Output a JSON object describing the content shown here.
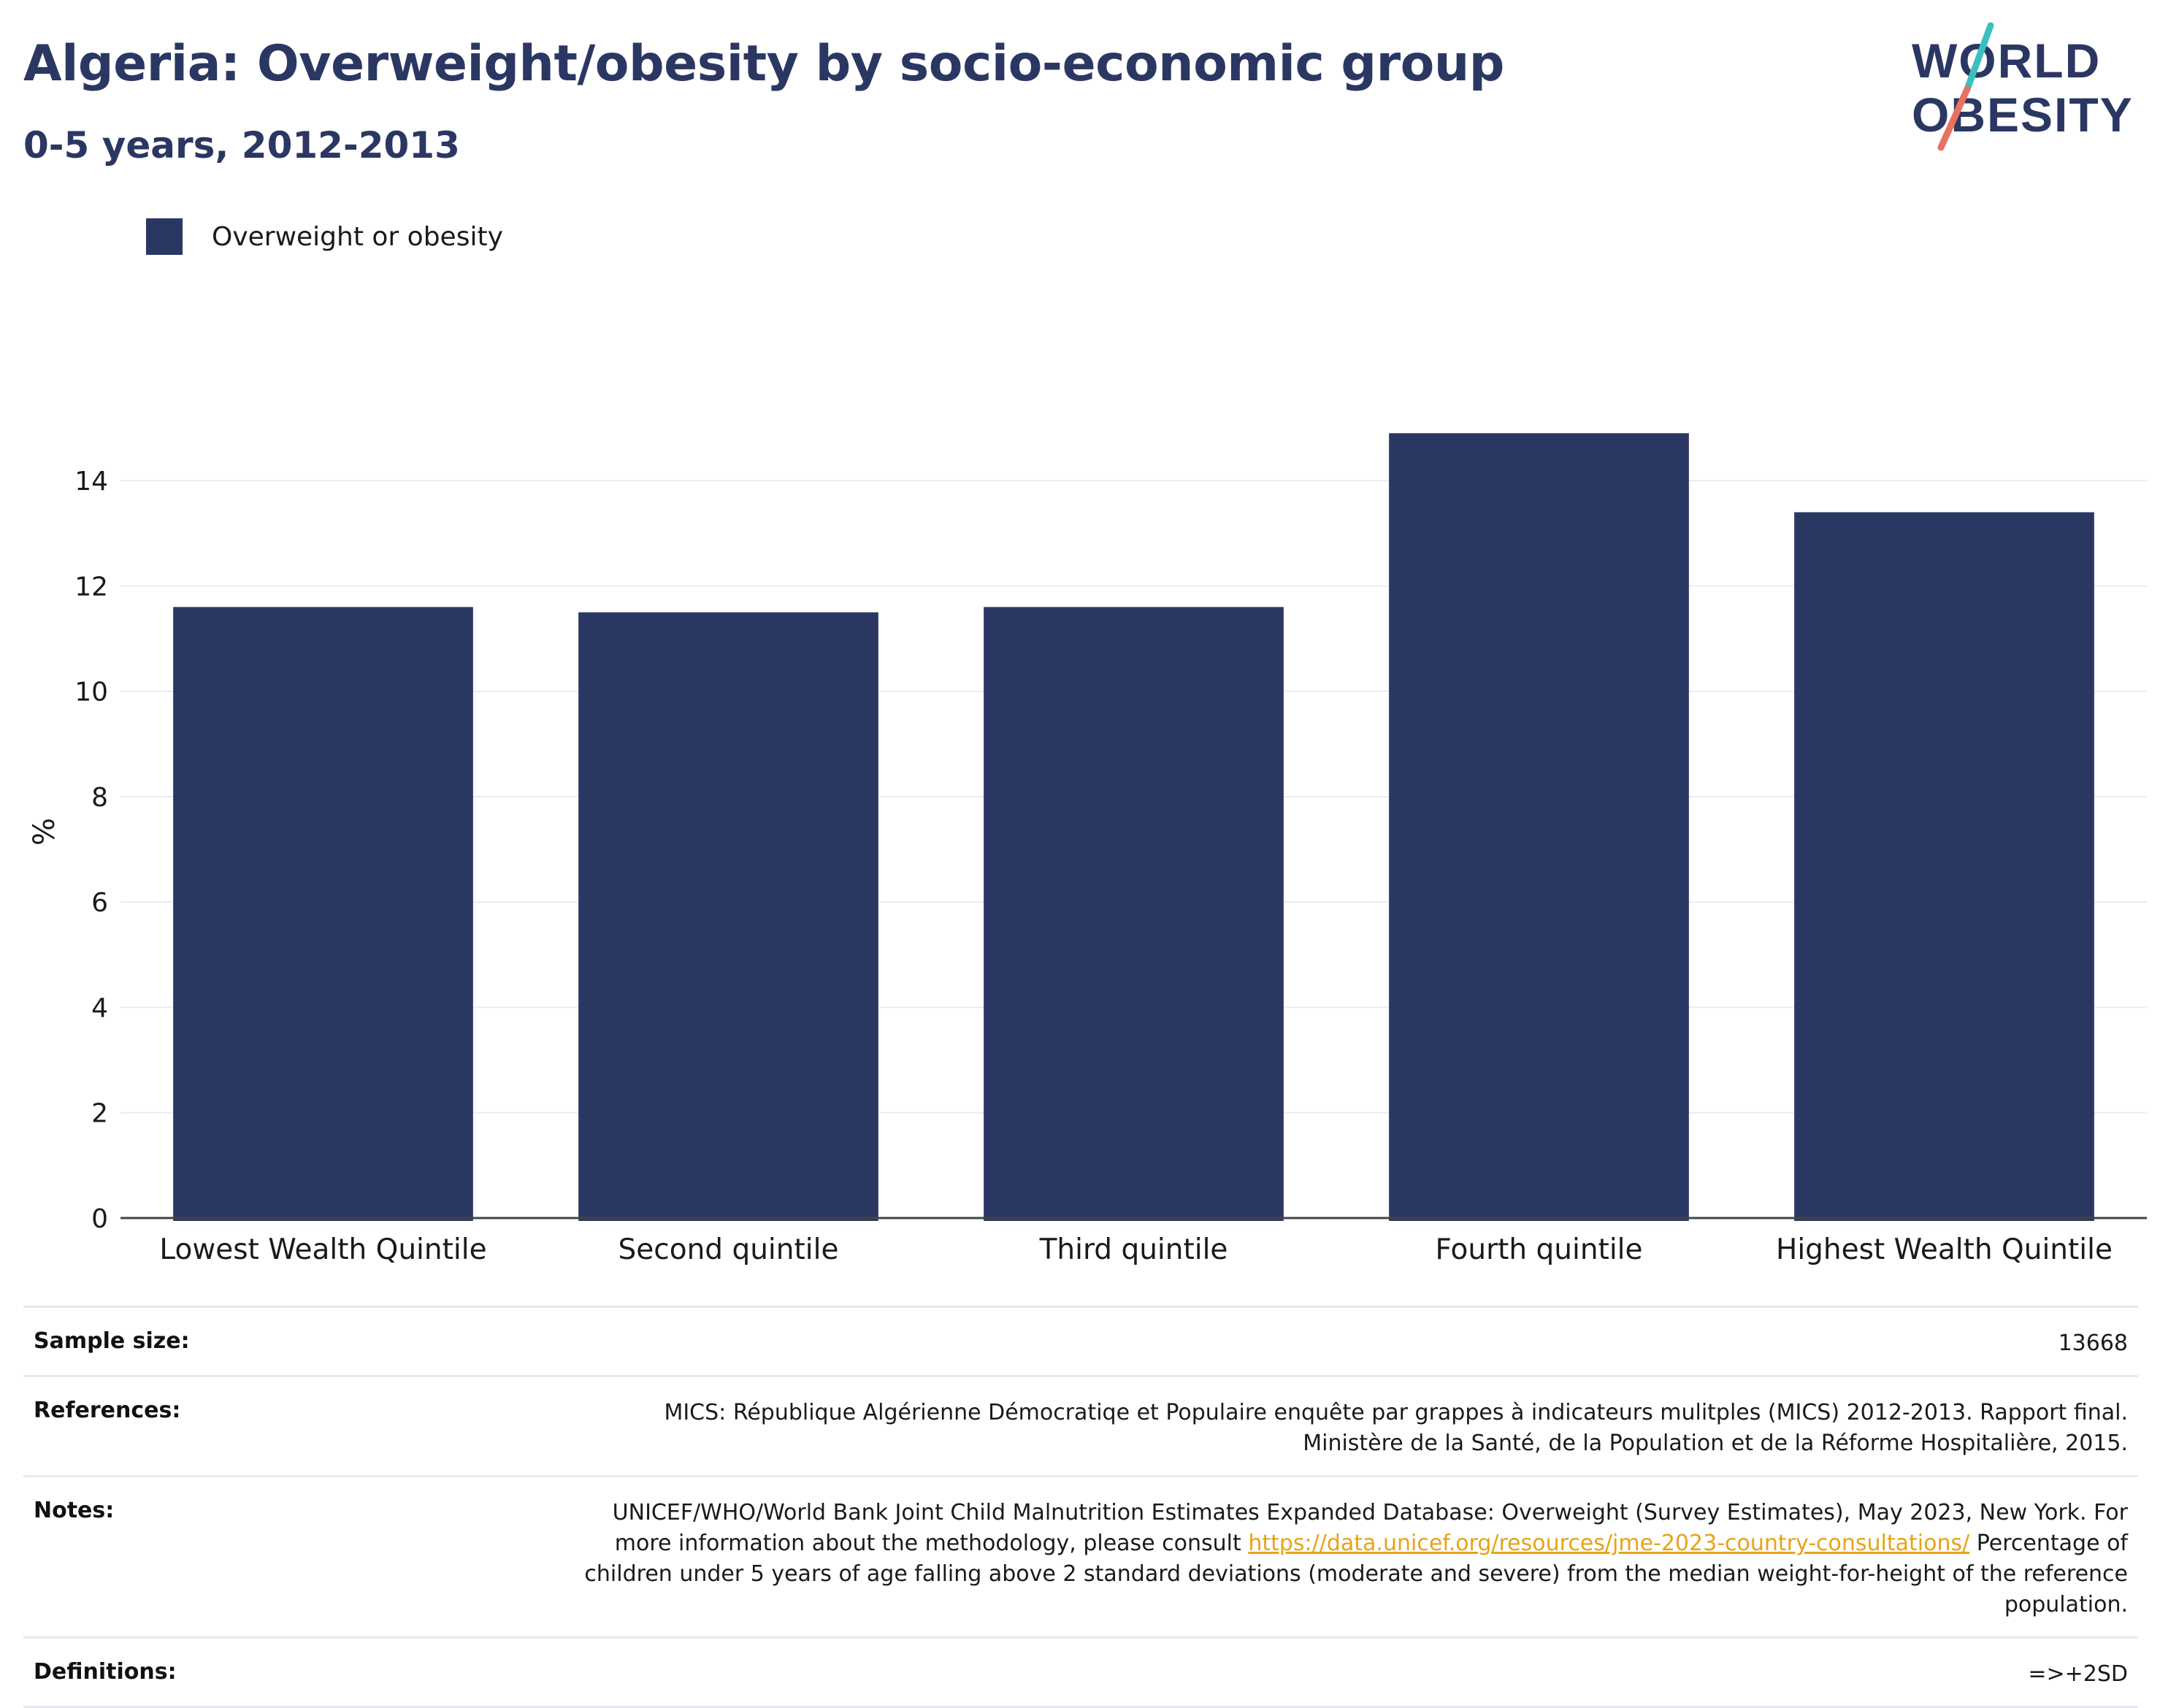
{
  "header": {
    "title": "Algeria: Overweight/obesity by socio-economic group",
    "subtitle": "0-5 years, 2012-2013"
  },
  "logo": {
    "line1": "WORLD",
    "line2": "OBESITY",
    "colors": {
      "text": "#2b3763",
      "slash_top": "#3bbfbf",
      "slash_bottom": "#e8715f"
    }
  },
  "legend": {
    "label": "Overweight or obesity",
    "color": "#2b3763"
  },
  "chart_data": {
    "type": "bar",
    "categories": [
      "Lowest Wealth Quintile",
      "Second quintile",
      "Third quintile",
      "Fourth quintile",
      "Highest Wealth Quintile"
    ],
    "series": [
      {
        "name": "Overweight or obesity",
        "values": [
          11.6,
          11.5,
          11.6,
          14.9,
          13.4
        ],
        "color": "#2b3763"
      }
    ],
    "ylabel": "%",
    "ylim": [
      0,
      15.5
    ],
    "yticks": [
      0,
      2,
      4,
      6,
      8,
      10,
      12,
      14
    ],
    "grid": true,
    "legend_position": "top-left"
  },
  "info": {
    "sample_size": {
      "label": "Sample size:",
      "value": "13668"
    },
    "references": {
      "label": "References:",
      "line1": "MICS: République Algérienne Démocratiqe et Populaire enquête par grappes à indicateurs mulitples (MICS) 2012-2013. Rapport final.",
      "line2": "Ministère de la Santé, de la Population et de la Réforme Hospitalière, 2015."
    },
    "notes": {
      "label": "Notes:",
      "text_before": "UNICEF/WHO/World Bank Joint Child Malnutrition Estimates Expanded Database: Overweight (Survey Estimates), May 2023, New York. For more information about the methodology, please consult ",
      "link": "https://data.unicef.org/resources/jme-2023-country-consultations/",
      "text_after": " Percentage of children under 5 years of age falling above 2 standard deviations (moderate and severe) from the median weight-for-height of the reference population."
    },
    "definitions": {
      "label": "Definitions:",
      "value": "=>+2SD"
    }
  }
}
